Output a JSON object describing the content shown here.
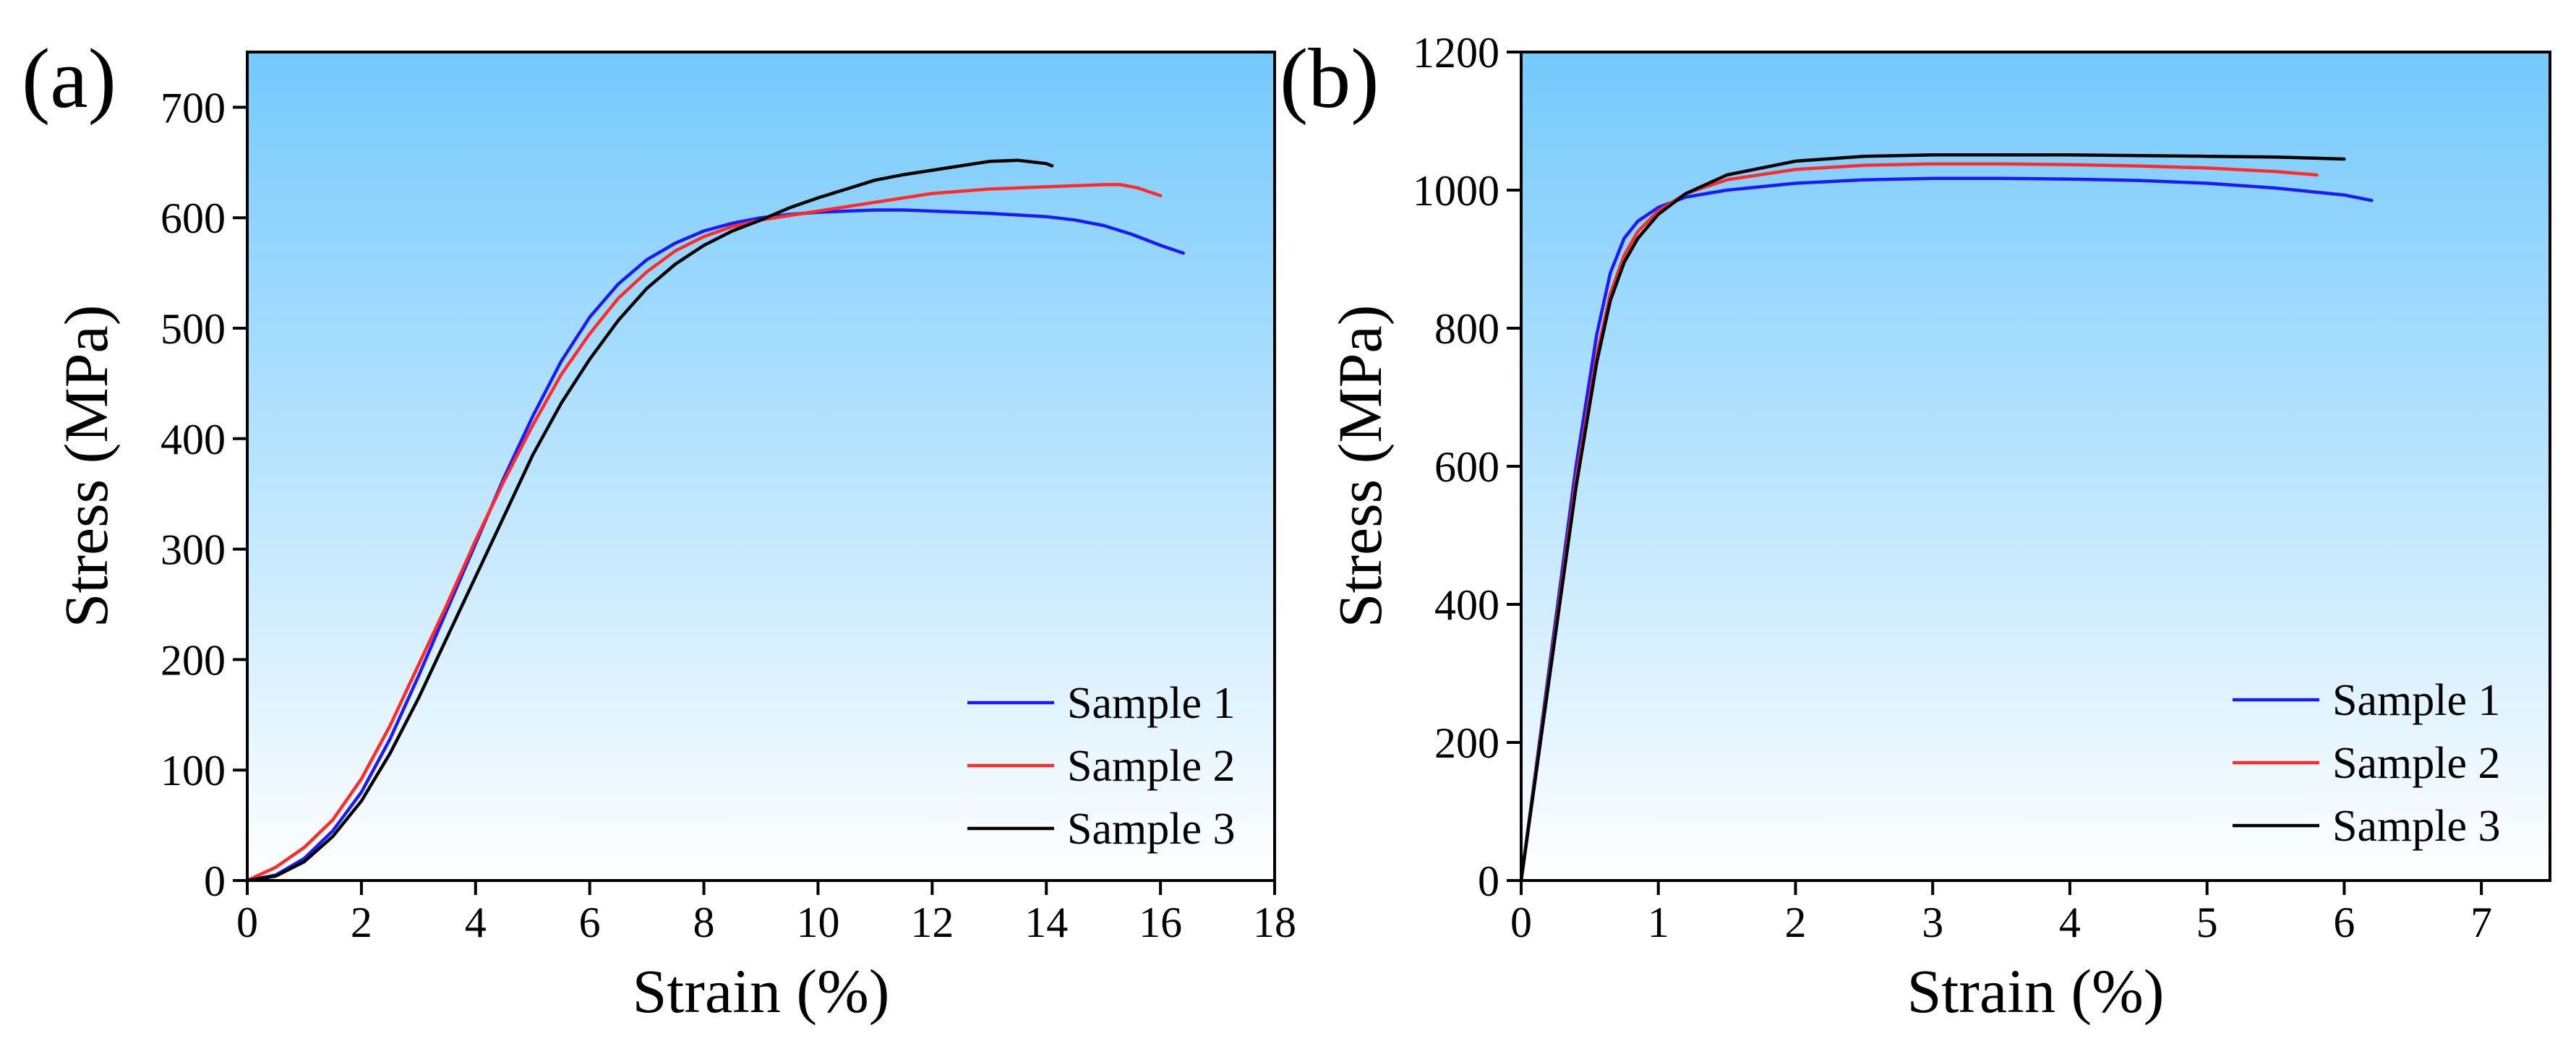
{
  "chart_data": [
    {
      "type": "line",
      "panel_label": "(a)",
      "xlabel": "Strain (%)",
      "ylabel": "Stress (MPa)",
      "xlim": [
        0,
        18
      ],
      "ylim": [
        0,
        750
      ],
      "xticks": [
        0,
        2,
        4,
        6,
        8,
        10,
        12,
        14,
        16,
        18
      ],
      "yticks": [
        0,
        100,
        200,
        300,
        400,
        500,
        600,
        700
      ],
      "xtick_labels": [
        "0",
        "2",
        "4",
        "6",
        "8",
        "10",
        "12",
        "14",
        "16",
        "18"
      ],
      "ytick_labels": [
        "0",
        "100",
        "200",
        "300",
        "400",
        "500",
        "600",
        "700"
      ],
      "background": {
        "top": "#74c9fc",
        "bottom": "#ffffff"
      },
      "legend_position": "bottom-right",
      "series": [
        {
          "name": "Sample 1",
          "color": "#1a1aff",
          "x": [
            0,
            0.5,
            1,
            1.5,
            2,
            2.5,
            3,
            3.5,
            4,
            4.5,
            5,
            5.5,
            6,
            6.5,
            7,
            7.5,
            8,
            8.5,
            9,
            9.5,
            10,
            10.5,
            11,
            11.5,
            12,
            13,
            14,
            14.5,
            15,
            15.5,
            16,
            16.4
          ],
          "y": [
            0,
            5,
            20,
            45,
            80,
            128,
            185,
            245,
            305,
            365,
            420,
            470,
            510,
            540,
            562,
            577,
            588,
            595,
            600,
            603,
            605,
            606,
            607,
            607,
            606,
            604,
            601,
            598,
            593,
            585,
            575,
            568
          ]
        },
        {
          "name": "Sample 2",
          "color": "#ff2b2b",
          "x": [
            0,
            0.5,
            1,
            1.5,
            2,
            2.5,
            3,
            3.5,
            4,
            4.5,
            5,
            5.5,
            6,
            6.5,
            7,
            7.5,
            8,
            8.5,
            9,
            9.5,
            10,
            11,
            12,
            13,
            14,
            14.5,
            15,
            15.3,
            15.6,
            16
          ],
          "y": [
            0,
            12,
            30,
            55,
            92,
            140,
            195,
            250,
            308,
            362,
            412,
            458,
            495,
            527,
            551,
            570,
            583,
            592,
            598,
            602,
            606,
            614,
            622,
            626,
            628,
            629,
            630,
            630,
            627,
            620
          ]
        },
        {
          "name": "Sample 3",
          "color": "#000000",
          "x": [
            0,
            0.5,
            1,
            1.5,
            2,
            2.5,
            3,
            3.5,
            4,
            4.5,
            5,
            5.5,
            6,
            6.5,
            7,
            7.5,
            8,
            8.5,
            9,
            9.5,
            10,
            10.5,
            11,
            11.5,
            12,
            12.5,
            13,
            13.5,
            14,
            14.1
          ],
          "y": [
            0,
            4,
            17,
            40,
            72,
            115,
            165,
            220,
            275,
            330,
            385,
            432,
            472,
            507,
            536,
            558,
            575,
            588,
            598,
            609,
            618,
            626,
            634,
            639,
            643,
            647,
            651,
            652,
            649,
            647
          ]
        }
      ]
    },
    {
      "type": "line",
      "panel_label": "(b)",
      "xlabel": "Strain (%)",
      "ylabel": "Stress (MPa)",
      "xlim": [
        0,
        7.5
      ],
      "ylim": [
        0,
        1200
      ],
      "xticks": [
        0,
        1,
        2,
        3,
        4,
        5,
        6,
        7
      ],
      "yticks": [
        0,
        200,
        400,
        600,
        800,
        1000,
        1200
      ],
      "xtick_labels": [
        "0",
        "1",
        "2",
        "3",
        "4",
        "5",
        "6",
        "7"
      ],
      "ytick_labels": [
        "0",
        "200",
        "400",
        "600",
        "800",
        "1000",
        "1200"
      ],
      "background": {
        "top": "#74c9fc",
        "bottom": "#ffffff"
      },
      "legend_position": "bottom-right",
      "series": [
        {
          "name": "Sample 1",
          "color": "#1a1aff",
          "x": [
            0,
            0.2,
            0.4,
            0.55,
            0.65,
            0.75,
            0.85,
            1,
            1.2,
            1.5,
            2,
            2.5,
            3,
            3.5,
            4,
            4.5,
            5,
            5.5,
            6,
            6.2
          ],
          "y": [
            0,
            300,
            600,
            790,
            880,
            930,
            955,
            975,
            990,
            1000,
            1010,
            1015,
            1017,
            1017,
            1016,
            1014,
            1010,
            1003,
            993,
            985
          ]
        },
        {
          "name": "Sample 2",
          "color": "#ff2b2b",
          "x": [
            0,
            0.2,
            0.4,
            0.55,
            0.65,
            0.75,
            0.85,
            1,
            1.2,
            1.5,
            2,
            2.5,
            3,
            3.5,
            4,
            4.5,
            5,
            5.5,
            5.8
          ],
          "y": [
            0,
            290,
            580,
            760,
            850,
            905,
            940,
            970,
            995,
            1015,
            1030,
            1036,
            1038,
            1038,
            1037,
            1035,
            1032,
            1027,
            1022
          ]
        },
        {
          "name": "Sample 3",
          "color": "#000000",
          "x": [
            0,
            0.2,
            0.4,
            0.55,
            0.65,
            0.75,
            0.85,
            1,
            1.2,
            1.5,
            2,
            2.5,
            3,
            3.5,
            4,
            4.5,
            5,
            5.5,
            6
          ],
          "y": [
            0,
            285,
            570,
            750,
            840,
            895,
            930,
            965,
            995,
            1022,
            1042,
            1049,
            1051,
            1051,
            1051,
            1050,
            1049,
            1048,
            1045
          ]
        }
      ]
    }
  ]
}
